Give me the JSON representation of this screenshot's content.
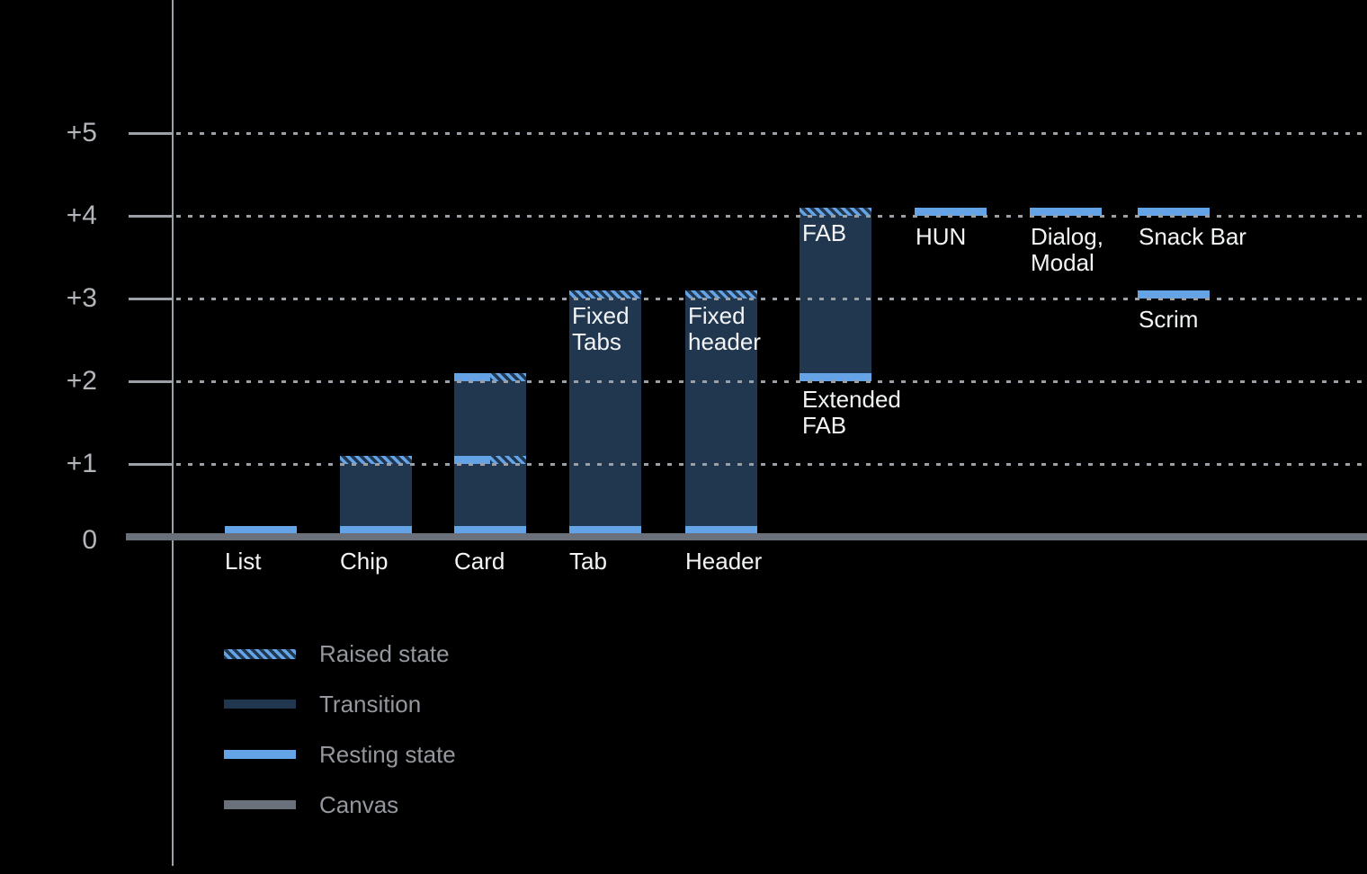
{
  "chart_data": {
    "type": "bar",
    "subtype": "stacked-elevation-diagram",
    "title": "",
    "y_axis": {
      "tick_labels": [
        "+5",
        "+4",
        "+3",
        "+2",
        "+1",
        "0"
      ],
      "values": [
        5,
        4,
        3,
        2,
        1,
        0
      ],
      "range": [
        0,
        5
      ],
      "grid": "dotted"
    },
    "bars": [
      {
        "name": "List",
        "column": 0,
        "segments": [
          {
            "kind": "resting",
            "from": 0,
            "to": 0.1
          }
        ],
        "labels": [
          {
            "position": "axis",
            "lines": [
              "List"
            ]
          }
        ]
      },
      {
        "name": "Chip",
        "column": 1,
        "segments": [
          {
            "kind": "resting",
            "from": 0,
            "to": 0.1
          },
          {
            "kind": "transition",
            "from": 0.1,
            "to": 1
          },
          {
            "kind": "raised",
            "from": 1,
            "to": 1.1
          }
        ],
        "labels": [
          {
            "position": "axis",
            "lines": [
              "Chip"
            ]
          }
        ]
      },
      {
        "name": "Card",
        "column": 2,
        "segments": [
          {
            "kind": "resting",
            "from": 0,
            "to": 0.1
          },
          {
            "kind": "transition",
            "from": 0.1,
            "to": 1
          },
          {
            "kind": "resting-raised",
            "from": 1,
            "to": 1.1
          },
          {
            "kind": "transition",
            "from": 1.1,
            "to": 2
          },
          {
            "kind": "resting-raised",
            "from": 2,
            "to": 2.1
          }
        ],
        "labels": [
          {
            "position": "axis",
            "lines": [
              "Card"
            ]
          }
        ]
      },
      {
        "name": "Tab",
        "column": 3,
        "segments": [
          {
            "kind": "resting",
            "from": 0,
            "to": 0.1
          },
          {
            "kind": "transition",
            "from": 0.1,
            "to": 3
          },
          {
            "kind": "raised",
            "from": 3,
            "to": 3.1
          }
        ],
        "labels": [
          {
            "position": "axis",
            "lines": [
              "Tab"
            ]
          },
          {
            "position": "inside-top",
            "lines": [
              "Fixed",
              "Tabs"
            ]
          }
        ]
      },
      {
        "name": "Header",
        "column": 4,
        "segments": [
          {
            "kind": "resting",
            "from": 0,
            "to": 0.1
          },
          {
            "kind": "transition",
            "from": 0.1,
            "to": 3
          },
          {
            "kind": "raised",
            "from": 3,
            "to": 3.1
          }
        ],
        "labels": [
          {
            "position": "axis",
            "lines": [
              "Header"
            ]
          },
          {
            "position": "inside-top",
            "lines": [
              "Fixed",
              "header"
            ]
          }
        ]
      },
      {
        "name": "FAB",
        "column": 5,
        "segments": [
          {
            "kind": "resting",
            "from": 2,
            "to": 2.1
          },
          {
            "kind": "transition",
            "from": 2.1,
            "to": 4
          },
          {
            "kind": "raised",
            "from": 4,
            "to": 4.1
          }
        ],
        "labels": [
          {
            "position": "inside-top",
            "lines": [
              "FAB"
            ]
          },
          {
            "position": "below-bar",
            "lines": [
              "Extended",
              "FAB"
            ]
          }
        ]
      },
      {
        "name": "HUN",
        "column": 6,
        "segments": [
          {
            "kind": "resting",
            "from": 4,
            "to": 4.1
          }
        ],
        "labels": [
          {
            "position": "below-strip",
            "lines": [
              "HUN"
            ]
          }
        ]
      },
      {
        "name": "Dialog, Modal",
        "column": 7,
        "segments": [
          {
            "kind": "resting",
            "from": 4,
            "to": 4.1
          }
        ],
        "labels": [
          {
            "position": "below-strip",
            "lines": [
              "Dialog,",
              "Modal"
            ]
          }
        ]
      },
      {
        "name": "Snack Bar",
        "column": 8,
        "segments": [
          {
            "kind": "resting",
            "from": 4,
            "to": 4.1
          }
        ],
        "labels": [
          {
            "position": "below-strip",
            "lines": [
              "Snack Bar"
            ]
          }
        ]
      },
      {
        "name": "Scrim",
        "column": 8,
        "segments": [
          {
            "kind": "resting",
            "from": 3,
            "to": 3.1
          }
        ],
        "labels": [
          {
            "position": "below-strip",
            "lines": [
              "Scrim"
            ]
          }
        ]
      }
    ],
    "legend": {
      "position": "bottom-left",
      "items": [
        {
          "kind": "raised",
          "label": "Raised state"
        },
        {
          "kind": "transition",
          "label": "Transition"
        },
        {
          "kind": "resting",
          "label": "Resting state"
        },
        {
          "kind": "canvas",
          "label": "Canvas"
        }
      ]
    },
    "colors": {
      "background": "#000000",
      "resting": "#63a3e6",
      "transition": "#21374f",
      "canvas": "#6b717a",
      "grid": "#9aa0a6",
      "axis_text": "#b2b5ba",
      "legend_text": "#94979d",
      "bar_text": "#f2f4f5"
    }
  }
}
